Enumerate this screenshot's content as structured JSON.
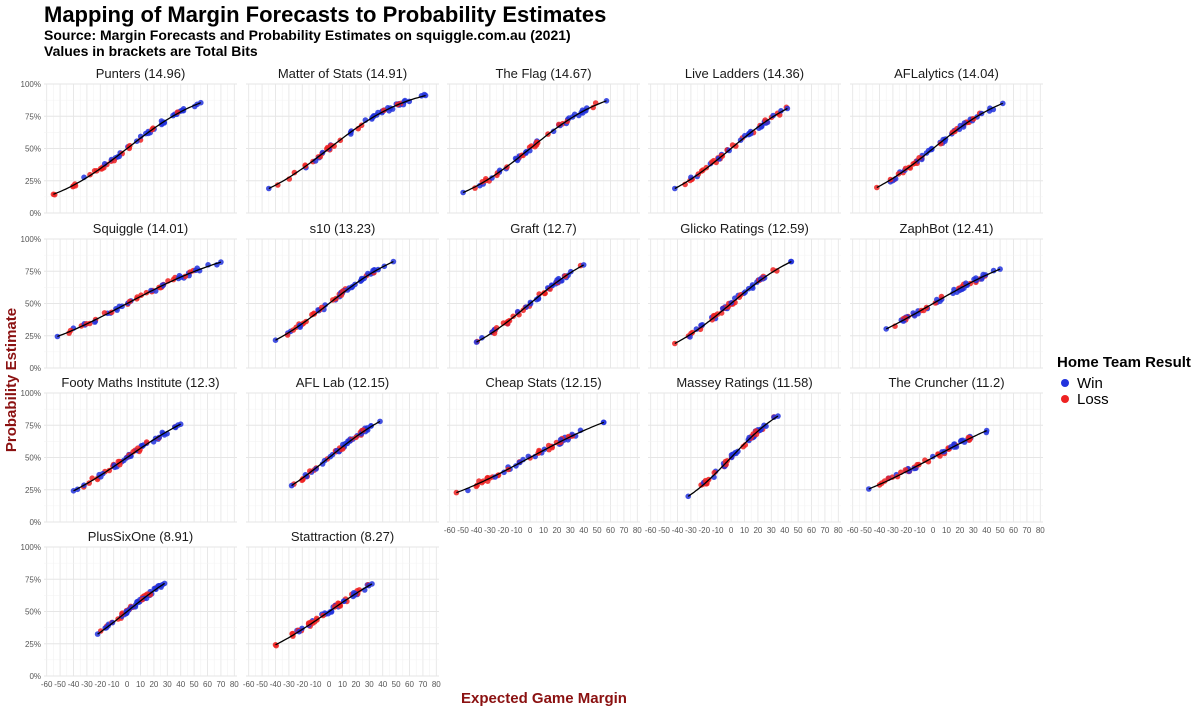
{
  "chart_data": {
    "type": "scatter",
    "title": "Mapping of Margin Forecasts to Probability Estimates",
    "subtitle": "Source: Margin Forecasts and Probability Estimates on squiggle.com.au (2021)",
    "caption": "Values in brackets are Total Bits",
    "xlabel": "Expected Game Margin",
    "ylabel": "Probability Estimate",
    "xlim": [
      -62,
      82
    ],
    "ylim": [
      0,
      1
    ],
    "x_ticks": [
      -60,
      -50,
      -40,
      -30,
      -20,
      -10,
      0,
      10,
      20,
      30,
      40,
      50,
      60,
      70,
      80
    ],
    "y_ticks": [
      "0%",
      "25%",
      "50%",
      "75%",
      "100%"
    ],
    "legend": {
      "title": "Home Team Result",
      "position": "right",
      "entries": [
        {
          "label": "Win",
          "color": "#2233dd"
        },
        {
          "label": "Loss",
          "color": "#ee2222"
        }
      ]
    },
    "panels": [
      {
        "name": "Punters",
        "bits": "14.96",
        "label": "Punters (14.96)",
        "x_min": -55,
        "x_max": 55,
        "scale": 31
      },
      {
        "name": "Matter of Stats",
        "bits": "14.91",
        "label": "Matter of Stats (14.91)",
        "x_min": -45,
        "x_max": 72,
        "scale": 31
      },
      {
        "name": "The Flag",
        "bits": "14.67",
        "label": "The Flag (14.67)",
        "x_min": -50,
        "x_max": 57,
        "scale": 30
      },
      {
        "name": "Live Ladders",
        "bits": "14.36",
        "label": "Live Ladders (14.36)",
        "x_min": -42,
        "x_max": 42,
        "scale": 29
      },
      {
        "name": "AFLalytics",
        "bits": "14.04",
        "label": "AFLalytics (14.04)",
        "x_min": -42,
        "x_max": 52,
        "scale": 30
      },
      {
        "name": "Squiggle",
        "bits": "14.01",
        "label": "Squiggle (14.01)",
        "x_min": -52,
        "x_max": 70,
        "scale": 46
      },
      {
        "name": "s10",
        "bits": "13.23",
        "label": "s10 (13.23)",
        "x_min": -40,
        "x_max": 48,
        "scale": 31
      },
      {
        "name": "Graft",
        "bits": "12.7",
        "label": "Graft (12.7)",
        "x_min": -40,
        "x_max": 40,
        "scale": 29
      },
      {
        "name": "Glicko Ratings",
        "bits": "12.59",
        "label": "Glicko Ratings (12.59)",
        "x_min": -42,
        "x_max": 45,
        "scale": 29
      },
      {
        "name": "ZaphBot",
        "bits": "12.41",
        "label": "ZaphBot (12.41)",
        "x_min": -35,
        "x_max": 50,
        "scale": 42
      },
      {
        "name": "Footy Maths Institute",
        "bits": "12.3",
        "label": "Footy Maths Institute (12.3)",
        "x_min": -40,
        "x_max": 40,
        "scale": 35
      },
      {
        "name": "AFL Lab",
        "bits": "12.15",
        "label": "AFL Lab (12.15)",
        "x_min": -28,
        "x_max": 38,
        "scale": 30
      },
      {
        "name": "Cheap Stats",
        "bits": "12.15",
        "label": "Cheap Stats (12.15)",
        "x_min": -55,
        "x_max": 55,
        "scale": 45
      },
      {
        "name": "Massey Ratings",
        "bits": "11.58",
        "label": "Massey Ratings (11.58)",
        "x_min": -32,
        "x_max": 35,
        "scale": 23
      },
      {
        "name": "The Cruncher",
        "bits": "11.2",
        "label": "The Cruncher (11.2)",
        "x_min": -48,
        "x_max": 40,
        "scale": 45
      },
      {
        "name": "PlusSixOne",
        "bits": "8.91",
        "label": "PlusSixOne (8.91)",
        "x_min": -22,
        "x_max": 28,
        "scale": 30
      },
      {
        "name": "Stattraction",
        "bits": "8.27",
        "label": "Stattraction (8.27)",
        "x_min": -40,
        "x_max": 32,
        "scale": 35
      }
    ]
  }
}
